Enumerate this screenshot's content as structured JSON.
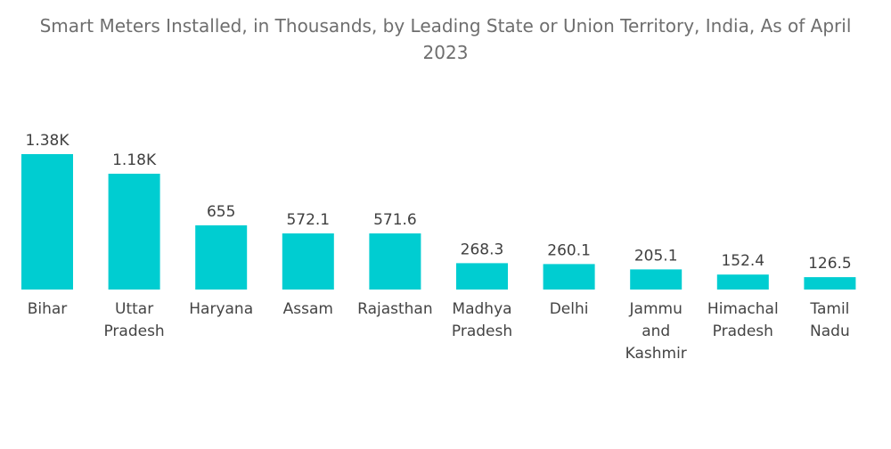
{
  "chart_data": {
    "type": "bar",
    "title_lines": [
      "Smart Meters Installed, in Thousands, by Leading State or Union Territory, India, As of April",
      "2023"
    ],
    "categories": [
      [
        "Bihar"
      ],
      [
        "Uttar",
        "Pradesh"
      ],
      [
        "Haryana"
      ],
      [
        "Assam"
      ],
      [
        "Rajasthan"
      ],
      [
        "Madhya",
        "Pradesh"
      ],
      [
        "Delhi"
      ],
      [
        "Jammu",
        "and",
        "Kashmir"
      ],
      [
        "Himachal",
        "Pradesh"
      ],
      [
        "Tamil",
        "Nadu"
      ]
    ],
    "values": [
      1380,
      1180,
      655,
      572.1,
      571.6,
      268.3,
      260.1,
      205.1,
      152.4,
      126.5
    ],
    "value_labels": [
      "1.38K",
      "1.18K",
      "655",
      "572.1",
      "571.6",
      "268.3",
      "260.1",
      "205.1",
      "152.4",
      "126.5"
    ],
    "bar_color": "#00cdd1",
    "grid": false,
    "legend": "none"
  }
}
